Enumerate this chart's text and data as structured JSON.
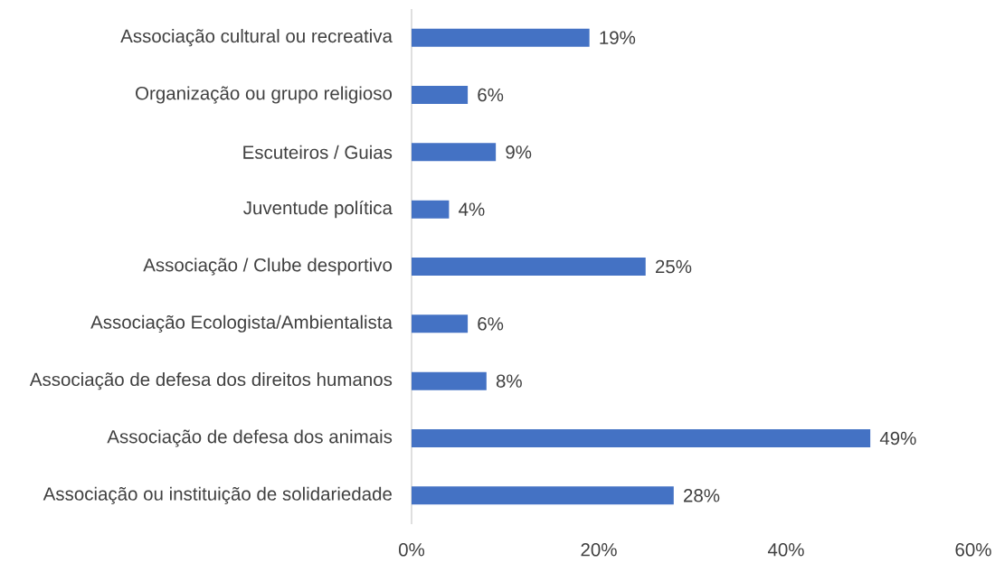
{
  "chart_data": {
    "type": "bar",
    "orientation": "horizontal",
    "categories": [
      "Associação cultural ou recreativa",
      "Organização ou grupo religioso",
      "Escuteiros / Guias",
      "Juventude política",
      "Associação / Clube desportivo",
      "Associação Ecologista/Ambientalista",
      "Associação de defesa dos direitos humanos",
      "Associação de defesa dos animais",
      "Associação ou instituição de solidariedade"
    ],
    "values": [
      19,
      6,
      9,
      4,
      25,
      6,
      8,
      49,
      28
    ],
    "value_labels": [
      "19%",
      "6%",
      "9%",
      "4%",
      "25%",
      "6%",
      "8%",
      "49%",
      "28%"
    ],
    "color": "#4472c4",
    "xlim": [
      0,
      60
    ],
    "xticks": [
      {
        "value": 0,
        "label": "0%"
      },
      {
        "value": 20,
        "label": "20%"
      },
      {
        "value": 40,
        "label": "40%"
      },
      {
        "value": 60,
        "label": "60%"
      }
    ]
  }
}
